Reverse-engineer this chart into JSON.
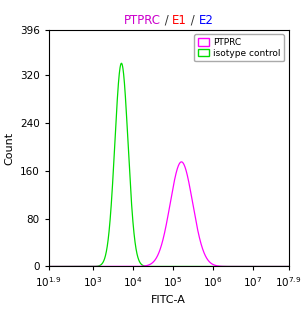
{
  "title_parts": [
    {
      "text": "PTPRC",
      "color": "#cc00cc"
    },
    {
      "text": " / ",
      "color": "#333333"
    },
    {
      "text": "E1",
      "color": "#ff0000"
    },
    {
      "text": " / ",
      "color": "#333333"
    },
    {
      "text": "E2",
      "color": "#0000ff"
    }
  ],
  "xlabel": "FITC-A",
  "ylabel": "Count",
  "xlim_log": [
    1.9,
    7.9
  ],
  "ylim": [
    0,
    396
  ],
  "yticks": [
    0,
    80,
    160,
    240,
    320,
    396
  ],
  "xticks_log": [
    1.9,
    3,
    4,
    5,
    6,
    7,
    7.9
  ],
  "background_color": "#ffffff",
  "green_peak_log": 3.72,
  "green_peak_height": 340,
  "green_sigma_log": 0.165,
  "magenta_peak_log": 5.22,
  "magenta_peak_height": 175,
  "magenta_sigma_log": 0.28,
  "green_color": "#00dd00",
  "magenta_color": "#ff00ff",
  "legend_labels": [
    "PTPRC",
    "isotype control"
  ],
  "legend_colors": [
    "#ff00ff",
    "#00dd00"
  ],
  "font_size": 7.5,
  "title_font_size": 8.5,
  "axis_label_font_size": 8
}
